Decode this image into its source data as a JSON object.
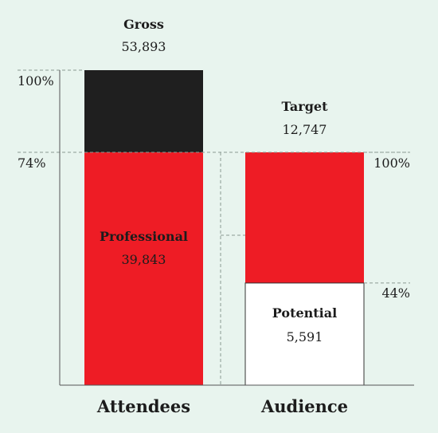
{
  "colors": {
    "background": "#e8f4ee",
    "dark": "#1f1f1f",
    "red": "#ee1c25",
    "white": "#ffffff",
    "dashed": "#8a9a92",
    "axis": "#555555"
  },
  "chart_data": {
    "type": "bar",
    "categories": [
      "Attendees",
      "Audience"
    ],
    "bars": [
      {
        "category": "Attendees",
        "total": 53893,
        "segments": [
          {
            "name": "Professional",
            "value": 39843,
            "display_value": "39,843",
            "color": "#ee1c25",
            "pct_label": "74%"
          },
          {
            "name": "Gross",
            "value": 14050,
            "color": "#1f1f1f",
            "pct_label": "100%"
          }
        ],
        "top_label": {
          "name": "Gross",
          "value": "53,893"
        }
      },
      {
        "category": "Audience",
        "total": 12747,
        "segments": [
          {
            "name": "Potential",
            "value": 5591,
            "display_value": "5,591",
            "color": "#ffffff",
            "pct_label": "44%"
          },
          {
            "name": "Target",
            "value": 7156,
            "color": "#ee1c25",
            "pct_label": "100%"
          }
        ],
        "top_label": {
          "name": "Target",
          "value": "12,747"
        }
      }
    ],
    "labels": {
      "gross_name": "Gross",
      "gross_value": "53,893",
      "target_name": "Target",
      "target_value": "12,747",
      "professional_name": "Professional",
      "professional_value": "39,843",
      "potential_name": "Potential",
      "potential_value": "5,591",
      "pct_100_left": "100%",
      "pct_74": "74%",
      "pct_100_right": "100%",
      "pct_44": "44%",
      "x_attendees": "Attendees",
      "x_audience": "Audience"
    }
  }
}
